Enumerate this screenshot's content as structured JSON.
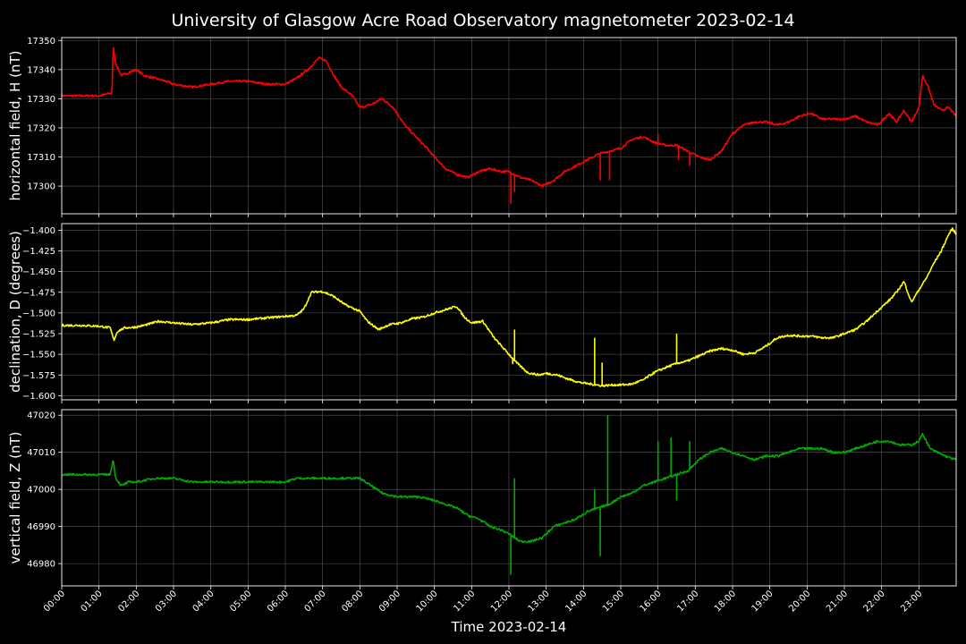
{
  "title": "University of Glasgow Acre Road Observatory magnetometer 2023-02-14",
  "chart_data": {
    "type": "line",
    "title": "University of Glasgow Acre Road Observatory magnetometer 2023-02-14",
    "xlabel": "Time 2023-02-14",
    "x_unit": "hours",
    "xlim": [
      0,
      24
    ],
    "x_tick_labels": [
      "00:00",
      "01:00",
      "02:00",
      "03:00",
      "04:00",
      "05:00",
      "06:00",
      "07:00",
      "08:00",
      "09:00",
      "10:00",
      "11:00",
      "12:00",
      "13:00",
      "14:00",
      "15:00",
      "16:00",
      "17:00",
      "18:00",
      "19:00",
      "20:00",
      "21:00",
      "22:00",
      "23:00"
    ],
    "grid": true,
    "panels": [
      {
        "ylabel": "horizontal field, H (nT)",
        "color": "#ff0000",
        "ylim": [
          17290.5,
          17351
        ],
        "yticks": [
          17300,
          17310,
          17320,
          17330,
          17340,
          17350
        ],
        "ytick_labels": [
          "17300",
          "17310",
          "17320",
          "17330",
          "17340",
          "17350"
        ],
        "series": [
          {
            "x": [
              0,
              0.5,
              1.0,
              1.35,
              1.38,
              1.45,
              1.6,
              1.8,
              2.0,
              2.2,
              2.5,
              2.8,
              3.0,
              3.5,
              4.0,
              4.5,
              5.0,
              5.5,
              6.0,
              6.3,
              6.6,
              6.9,
              7.1,
              7.3,
              7.5,
              7.8,
              8.0,
              8.3,
              8.6,
              8.9,
              9.2,
              9.5,
              9.8,
              10.0,
              10.3,
              10.6,
              10.9,
              11.2,
              11.5,
              11.8,
              12.0,
              12.3,
              12.6,
              12.9,
              13.2,
              13.5,
              13.8,
              14.1,
              14.4,
              14.7,
              15.0,
              15.3,
              15.6,
              15.9,
              16.2,
              16.5,
              16.8,
              17.1,
              17.4,
              17.7,
              18.0,
              18.3,
              18.6,
              18.9,
              19.2,
              19.5,
              19.8,
              20.1,
              20.4,
              20.7,
              21.0,
              21.3,
              21.6,
              21.9,
              22.2,
              22.4,
              22.6,
              22.8,
              23.0,
              23.1,
              23.25,
              23.4,
              23.6,
              23.8,
              24.0
            ],
            "y": [
              17331,
              17331,
              17331,
              17332,
              17348,
              17342,
              17338,
              17339,
              17340,
              17338,
              17337,
              17336,
              17335,
              17334,
              17335,
              17336,
              17336,
              17335,
              17335,
              17337,
              17340,
              17344,
              17343,
              17338,
              17334,
              17331,
              17327,
              17328,
              17330,
              17327,
              17321,
              17317,
              17313,
              17310,
              17306,
              17304,
              17303,
              17305,
              17306,
              17305,
              17305,
              17303,
              17302,
              17300,
              17302,
              17305,
              17307,
              17309,
              17311,
              17312,
              17313,
              17316,
              17317,
              17315,
              17314,
              17314,
              17312,
              17310,
              17309,
              17312,
              17318,
              17321,
              17322,
              17322,
              17321,
              17322,
              17324,
              17325,
              17323,
              17323,
              17323,
              17324,
              17322,
              17321,
              17325,
              17322,
              17326,
              17322,
              17327,
              17338,
              17334,
              17328,
              17326,
              17327,
              17324
            ],
            "spikes": [
              [
                12.05,
                17294
              ],
              [
                12.15,
                17298
              ],
              [
                14.45,
                17302
              ],
              [
                14.7,
                17302
              ],
              [
                16.55,
                17309
              ],
              [
                16.85,
                17307
              ],
              [
                16.0,
                17318
              ]
            ]
          }
        ]
      },
      {
        "ylabel": "declination, D (degrees)",
        "color": "#ffff00",
        "ylim": [
          -1.605,
          -1.392
        ],
        "yticks": [
          -1.6,
          -1.575,
          -1.55,
          -1.525,
          -1.5,
          -1.475,
          -1.45,
          -1.425,
          -1.4
        ],
        "ytick_labels": [
          "−1.600",
          "−1.575",
          "−1.550",
          "−1.525",
          "−1.500",
          "−1.475",
          "−1.450",
          "−1.425",
          "−1.400"
        ],
        "series": [
          {
            "x": [
              0,
              0.5,
              1.0,
              1.3,
              1.4,
              1.5,
              1.7,
              2.0,
              2.3,
              2.6,
              3.0,
              3.5,
              4.0,
              4.5,
              5.0,
              5.5,
              6.0,
              6.3,
              6.5,
              6.7,
              7.0,
              7.3,
              7.6,
              8.0,
              8.2,
              8.5,
              8.8,
              9.1,
              9.4,
              9.7,
              10.0,
              10.3,
              10.6,
              10.8,
              11.0,
              11.3,
              11.6,
              11.9,
              12.2,
              12.5,
              12.8,
              13.0,
              13.3,
              13.6,
              13.9,
              14.2,
              14.5,
              14.8,
              15.0,
              15.3,
              15.6,
              15.9,
              16.2,
              16.5,
              16.8,
              17.1,
              17.4,
              17.7,
              18.0,
              18.3,
              18.6,
              18.9,
              19.2,
              19.5,
              19.8,
              20.1,
              20.4,
              20.7,
              21.0,
              21.3,
              21.6,
              21.9,
              22.2,
              22.4,
              22.6,
              22.8,
              23.0,
              23.2,
              23.4,
              23.6,
              23.8,
              23.9,
              24.0
            ],
            "y": [
              -1.515,
              -1.515,
              -1.516,
              -1.518,
              -1.533,
              -1.522,
              -1.518,
              -1.517,
              -1.514,
              -1.51,
              -1.512,
              -1.514,
              -1.512,
              -1.508,
              -1.508,
              -1.506,
              -1.504,
              -1.503,
              -1.495,
              -1.475,
              -1.474,
              -1.48,
              -1.49,
              -1.498,
              -1.51,
              -1.52,
              -1.514,
              -1.512,
              -1.507,
              -1.505,
              -1.5,
              -1.496,
              -1.492,
              -1.505,
              -1.512,
              -1.51,
              -1.53,
              -1.545,
              -1.56,
              -1.572,
              -1.575,
              -1.573,
              -1.575,
              -1.58,
              -1.584,
              -1.586,
              -1.588,
              -1.587,
              -1.587,
              -1.586,
              -1.581,
              -1.572,
              -1.566,
              -1.561,
              -1.558,
              -1.552,
              -1.546,
              -1.543,
              -1.545,
              -1.55,
              -1.548,
              -1.54,
              -1.53,
              -1.527,
              -1.528,
              -1.528,
              -1.53,
              -1.53,
              -1.525,
              -1.52,
              -1.51,
              -1.497,
              -1.485,
              -1.475,
              -1.462,
              -1.487,
              -1.472,
              -1.458,
              -1.44,
              -1.425,
              -1.405,
              -1.398,
              -1.405
            ],
            "spikes": [
              [
                12.1,
                -1.562
              ],
              [
                12.15,
                -1.52
              ],
              [
                14.3,
                -1.53
              ],
              [
                14.5,
                -1.56
              ],
              [
                16.5,
                -1.525
              ]
            ]
          }
        ]
      },
      {
        "ylabel": "vertical field, Z (nT)",
        "color": "#00aa00",
        "ylim": [
          46974,
          47021.5
        ],
        "yticks": [
          46980,
          46990,
          47000,
          47010,
          47020
        ],
        "ytick_labels": [
          "46980",
          "46990",
          "47000",
          "47010",
          "47020"
        ],
        "series": [
          {
            "x": [
              0,
              0.5,
              1.0,
              1.3,
              1.38,
              1.45,
              1.6,
              1.8,
              2.0,
              2.5,
              3.0,
              3.5,
              4.0,
              4.5,
              5.0,
              5.5,
              6.0,
              6.3,
              6.6,
              7.0,
              7.5,
              8.0,
              8.3,
              8.6,
              9.0,
              9.3,
              9.6,
              10.0,
              10.3,
              10.6,
              10.9,
              11.2,
              11.5,
              11.8,
              12.0,
              12.3,
              12.6,
              12.9,
              13.2,
              13.5,
              13.8,
              14.1,
              14.4,
              14.7,
              15.0,
              15.3,
              15.6,
              15.9,
              16.2,
              16.5,
              16.8,
              17.1,
              17.4,
              17.7,
              18.0,
              18.3,
              18.6,
              18.9,
              19.2,
              19.5,
              19.8,
              20.1,
              20.4,
              20.7,
              21.0,
              21.3,
              21.6,
              21.9,
              22.2,
              22.5,
              22.8,
              23.0,
              23.1,
              23.3,
              23.5,
              23.7,
              24.0
            ],
            "y": [
              47004,
              47004,
              47004,
              47004,
              47008,
              47003,
              47001,
              47002,
              47002,
              47003,
              47003,
              47002,
              47002,
              47002,
              47002,
              47002,
              47002,
              47003,
              47003,
              47003,
              47003,
              47003,
              47001,
              46999,
              46998,
              46998,
              46998,
              46997,
              46996,
              46995,
              46993,
              46992,
              46990,
              46989,
              46988,
              46986,
              46986,
              46987,
              46990,
              46991,
              46992,
              46994,
              46995,
              46996,
              46998,
              46999,
              47001,
              47002,
              47003,
              47004,
              47005,
              47008,
              47010,
              47011,
              47010,
              47009,
              47008,
              47009,
              47009,
              47010,
              47011,
              47011,
              47011,
              47010,
              47010,
              47011,
              47012,
              47013,
              47013,
              47012,
              47012,
              47013,
              47015,
              47011,
              47010,
              47009,
              47008
            ],
            "spikes": [
              [
                12.05,
                46977
              ],
              [
                12.15,
                47003
              ],
              [
                14.3,
                47000
              ],
              [
                14.45,
                46982
              ],
              [
                14.65,
                47020
              ],
              [
                16.0,
                47013
              ],
              [
                16.35,
                47014
              ],
              [
                16.5,
                46997
              ],
              [
                16.85,
                47013
              ]
            ]
          }
        ]
      }
    ]
  }
}
